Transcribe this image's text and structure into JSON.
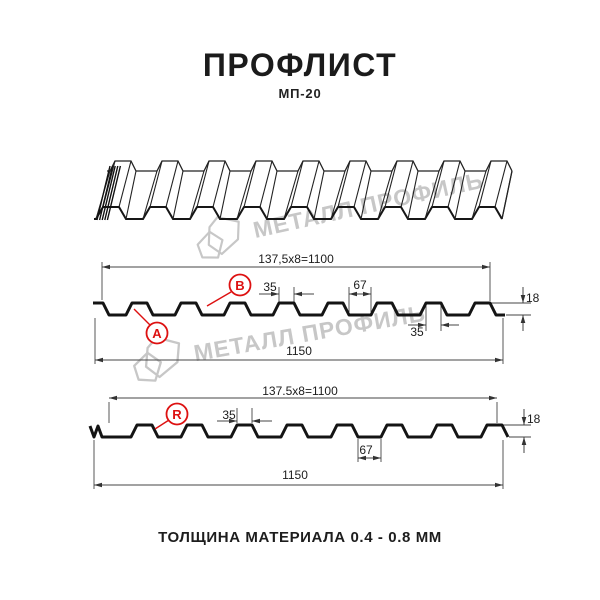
{
  "header": {
    "title": "ПРОФЛИСТ",
    "subtitle": "МП-20"
  },
  "watermark": {
    "brand": "МЕТАЛЛ ПРОФИЛЬ"
  },
  "footer": {
    "note": "ТОЛЩИНА МАТЕРИАЛА 0.4 - 0.8 ММ"
  },
  "colors": {
    "accent_red": "#dd1111",
    "drawing_line": "#141414",
    "dimension_line": "#454545",
    "watermark_gray": "#c7c7c7"
  },
  "profile_front": {
    "dim_working_width": "137,5x8=1100",
    "dim_rib_top_width": "35",
    "dim_valley_width": "67",
    "dim_profile_height": "18",
    "dim_rib_bottom_width": "35",
    "dim_overall_width": "1150",
    "marker_a": "A",
    "marker_b": "B"
  },
  "profile_back": {
    "dim_working_width": "137.5x8=1100",
    "dim_rib_top_width": "35",
    "dim_valley_width": "67",
    "dim_profile_height": "18",
    "dim_overall_width": "1150",
    "marker_r": "R"
  }
}
